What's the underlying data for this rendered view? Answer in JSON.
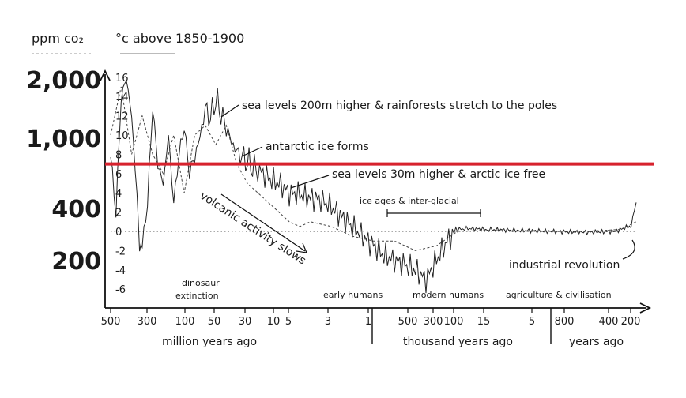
{
  "chart_data": {
    "type": "line",
    "title": "",
    "left_axis_labels": {
      "co2_unit": "ppm co₂",
      "temp_unit": "°c above 1850-1900"
    },
    "co2_ticks": [
      "2,000",
      "1,000",
      "400",
      "200"
    ],
    "temp_ticks": [
      "16",
      "14",
      "12",
      "10",
      "8",
      "6",
      "4",
      "2",
      "0",
      "-2",
      "-4",
      "-6"
    ],
    "x_segments": [
      {
        "label": "million years ago",
        "ticks": [
          "500",
          "300",
          "100",
          "50",
          "30",
          "10",
          "5",
          "3",
          "1"
        ]
      },
      {
        "label": "thousand years ago",
        "ticks": [
          "500",
          "300",
          "100",
          "15",
          "5"
        ]
      },
      {
        "label": "years ago",
        "ticks": [
          "800",
          "400",
          "200"
        ]
      }
    ],
    "annotations": [
      "sea levels 200m higher & rainforests stretch to the poles",
      "antarctic ice forms",
      "sea levels 30m higher & arctic ice free",
      "ice ages & inter-glacial",
      "volcanic activity slows",
      "industrial revolution"
    ],
    "epochs": [
      "dinosaur extinction",
      "early humans",
      "modern humans",
      "agriculture & civilisation"
    ],
    "reference_line": {
      "color": "#d7222d",
      "temp_value": 7
    },
    "series": [
      {
        "kind": "temperature",
        "style": "solid",
        "points": [
          [
            0.0,
            8
          ],
          [
            0.01,
            2
          ],
          [
            0.02,
            14
          ],
          [
            0.03,
            16
          ],
          [
            0.04,
            12
          ],
          [
            0.05,
            4
          ],
          [
            0.055,
            -2
          ],
          [
            0.06,
            -1.5
          ],
          [
            0.07,
            3
          ],
          [
            0.08,
            13
          ],
          [
            0.09,
            7
          ],
          [
            0.1,
            5
          ],
          [
            0.11,
            10
          ],
          [
            0.12,
            3
          ],
          [
            0.13,
            8
          ],
          [
            0.14,
            11
          ],
          [
            0.15,
            6
          ],
          [
            0.16,
            8
          ],
          [
            0.17,
            10
          ],
          [
            0.18,
            13
          ],
          [
            0.19,
            12
          ],
          [
            0.2,
            14
          ],
          [
            0.21,
            12.5
          ],
          [
            0.22,
            11
          ],
          [
            0.23,
            9.5
          ],
          [
            0.24,
            8.5
          ],
          [
            0.25,
            8
          ],
          [
            0.26,
            7.5
          ],
          [
            0.27,
            7
          ],
          [
            0.28,
            6.5
          ],
          [
            0.3,
            5.5
          ],
          [
            0.32,
            5
          ],
          [
            0.34,
            4
          ],
          [
            0.36,
            3.8
          ],
          [
            0.38,
            3.5
          ],
          [
            0.4,
            3.3
          ],
          [
            0.42,
            2.5
          ],
          [
            0.44,
            1.5
          ],
          [
            0.46,
            0.5
          ],
          [
            0.48,
            -0.5
          ],
          [
            0.5,
            -1.5
          ],
          [
            0.52,
            -2.5
          ],
          [
            0.54,
            -3
          ],
          [
            0.56,
            -3.5
          ],
          [
            0.58,
            -4
          ],
          [
            0.6,
            -5
          ],
          [
            0.62,
            -3
          ],
          [
            0.64,
            -1
          ],
          [
            0.66,
            0.2
          ],
          [
            0.68,
            0.3
          ],
          [
            0.72,
            0.2
          ],
          [
            0.78,
            0.1
          ],
          [
            0.84,
            0.0
          ],
          [
            0.9,
            -0.1
          ],
          [
            0.96,
            0.0
          ],
          [
            0.99,
            0.6
          ],
          [
            1.0,
            3
          ]
        ]
      },
      {
        "kind": "co2",
        "style": "dashed",
        "points": [
          [
            0.0,
            10
          ],
          [
            0.02,
            15
          ],
          [
            0.04,
            8
          ],
          [
            0.06,
            12
          ],
          [
            0.08,
            8
          ],
          [
            0.1,
            6
          ],
          [
            0.12,
            10
          ],
          [
            0.14,
            4
          ],
          [
            0.16,
            10
          ],
          [
            0.18,
            11
          ],
          [
            0.2,
            9
          ],
          [
            0.22,
            11
          ],
          [
            0.24,
            7
          ],
          [
            0.26,
            5
          ],
          [
            0.28,
            4
          ],
          [
            0.3,
            3
          ],
          [
            0.32,
            2
          ],
          [
            0.34,
            1
          ],
          [
            0.36,
            0.5
          ],
          [
            0.38,
            1
          ],
          [
            0.42,
            0.5
          ],
          [
            0.46,
            -0.5
          ],
          [
            0.5,
            -1
          ],
          [
            0.54,
            -1
          ],
          [
            0.58,
            -2
          ],
          [
            0.62,
            -1.5
          ],
          [
            0.66,
            0.0
          ],
          [
            0.72,
            0.1
          ],
          [
            0.8,
            0.0
          ],
          [
            0.9,
            0.0
          ],
          [
            0.97,
            0.2
          ],
          [
            1.0,
            1
          ]
        ]
      }
    ],
    "zero_line": {
      "style": "dotted",
      "temp_value": 0
    }
  }
}
